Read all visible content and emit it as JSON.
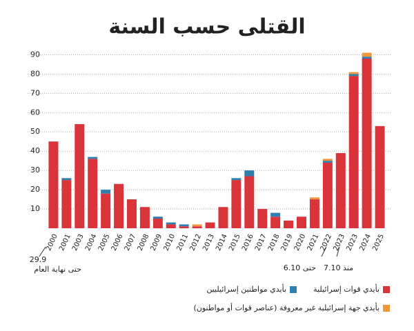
{
  "chart_data": {
    "type": "stacked_bar",
    "title": "القتلى حسب السنة",
    "categories": [
      "2000",
      "2001",
      "2003",
      "2004",
      "2005",
      "2006",
      "2007",
      "2008",
      "2009",
      "2010",
      "2011",
      "2012",
      "2013",
      "2014",
      "2015",
      "2016",
      "2017",
      "2018",
      "2019",
      "2020",
      "2021",
      "2022",
      "2023",
      "2023",
      "2024",
      "2025"
    ],
    "series": [
      {
        "name": "بأيدي قوات إسرائيلية",
        "color": "#d9343a",
        "values": [
          45,
          25,
          54,
          36,
          18,
          23,
          15,
          11,
          5,
          2,
          1,
          1,
          3,
          11,
          25,
          27,
          10,
          6,
          4,
          6,
          15,
          34,
          39,
          79,
          88,
          53
        ]
      },
      {
        "name": "بأيدي مواطنين إسرائيليين",
        "color": "#2e7fb0",
        "values": [
          null,
          1,
          null,
          1,
          2,
          null,
          null,
          null,
          1,
          1,
          1,
          null,
          null,
          null,
          1,
          3,
          null,
          2,
          null,
          null,
          null,
          1,
          null,
          1,
          1,
          null
        ]
      },
      {
        "name": "بأيدي جهة إسرائيلية غير معروفة (عناصر قوات أو مواطنون)",
        "color": "#f0973a",
        "values": [
          null,
          null,
          null,
          null,
          null,
          null,
          null,
          null,
          null,
          null,
          null,
          1,
          null,
          null,
          null,
          null,
          null,
          null,
          null,
          null,
          1,
          1,
          null,
          1,
          2,
          null
        ]
      }
    ],
    "ylim": [
      0,
      93
    ],
    "yticks": [
      10,
      20,
      30,
      40,
      50,
      60,
      70,
      80,
      90
    ],
    "grid": true,
    "annotations": [
      "29.9",
      "حتى نهاية العام",
      "حتى 6.10",
      "منذ 7.10"
    ]
  }
}
